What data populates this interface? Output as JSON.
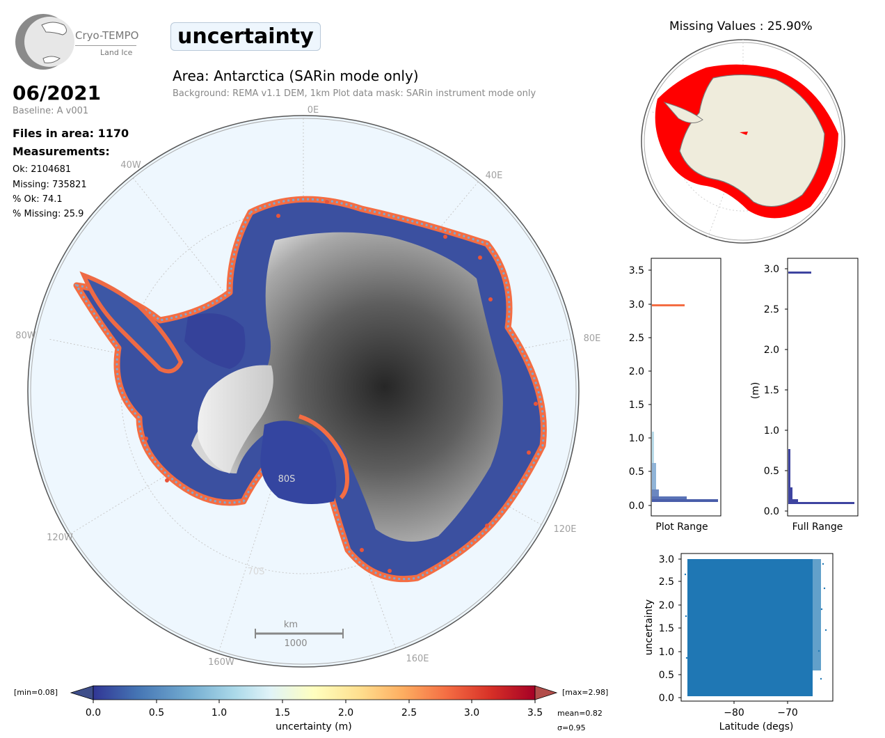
{
  "header": {
    "logo_name": "Cryo-TEMPO",
    "logo_sub": "Land Ice",
    "variable_badge": "uncertainty",
    "period": "06/2021",
    "baseline": "Baseline: A v001",
    "files_in_area": "Files in area: 1170",
    "measurements_title": "Measurements:",
    "stats": [
      "Ok: 2104681",
      "Missing: 735821",
      "% Ok: 74.1",
      "% Missing: 25.9"
    ]
  },
  "main_map": {
    "area_title": "Area: Antarctica (SARin mode only)",
    "subtitle": "Background: REMA v1.1 DEM, 1km   Plot data mask: SARin instrument mode only",
    "lon_labels": {
      "e0": "0E",
      "e40": "40E",
      "e80": "80E",
      "e120": "120E",
      "e160": "160E",
      "w40": "40W",
      "w80": "80W",
      "w120": "120W",
      "w160": "160W"
    },
    "lat_labels": {
      "s80": "80S",
      "s70": "70S"
    },
    "scalebar_unit": "km",
    "scalebar_value": "1000"
  },
  "colorbar": {
    "min_label": "[min=0.08]",
    "max_label": "[max=2.98]",
    "ticks": [
      "0.0",
      "0.5",
      "1.0",
      "1.5",
      "2.0",
      "2.5",
      "3.0",
      "3.5"
    ],
    "label": "uncertainty (m)",
    "mean": "mean=0.82",
    "sigma": "σ=0.95",
    "colors": [
      "#313695",
      "#4575b4",
      "#74add1",
      "#abd9e9",
      "#e0f3f8",
      "#ffffbf",
      "#fee090",
      "#fdae61",
      "#f46d43",
      "#d73027",
      "#a50026"
    ]
  },
  "inset_map": {
    "title": "Missing Values : 25.90%",
    "missing_color": "#ff0000",
    "land_color": "#efecdc"
  },
  "plot_range_hist": {
    "xlabel": "Plot Range",
    "yticks": [
      "0.0",
      "0.5",
      "1.0",
      "1.5",
      "2.0",
      "2.5",
      "3.0",
      "3.5"
    ],
    "ylim": [
      0,
      3.5
    ]
  },
  "full_range_hist": {
    "xlabel": "Full Range",
    "ylabel": "(m)",
    "yticks": [
      "0.0",
      "0.5",
      "1.0",
      "1.5",
      "2.0",
      "2.5",
      "3.0"
    ],
    "ylim": [
      0,
      3.0
    ]
  },
  "chart_data": [
    {
      "type": "bar",
      "orientation": "horizontal",
      "xlabel": "Plot Range",
      "ylim": [
        -0.15,
        3.7
      ],
      "note": "relative counts per uncertainty bin",
      "bins": [
        {
          "y": 0.07,
          "count": 1.0,
          "color": "#4a5eaa"
        },
        {
          "y": 0.12,
          "count": 0.52,
          "color": "#5a73b6"
        },
        {
          "y": 0.18,
          "count": 0.1,
          "color": "#6b87c0"
        },
        {
          "y": 0.3,
          "count": 0.08,
          "color": "#7c9fce"
        },
        {
          "y": 0.5,
          "count": 0.06,
          "color": "#8fb3d7"
        },
        {
          "y": 0.7,
          "count": 0.04,
          "color": "#a3c8e0"
        },
        {
          "y": 1.0,
          "count": 0.02,
          "color": "#b8dbe9"
        },
        {
          "y": 1.3,
          "count": 0.01,
          "color": "#cce8ef"
        },
        {
          "y": 2.97,
          "count": 0.5,
          "color": "#f46d43"
        }
      ]
    },
    {
      "type": "bar",
      "orientation": "horizontal",
      "xlabel": "Full Range",
      "ylabel": "(m)",
      "ylim": [
        -0.05,
        3.15
      ],
      "bins": [
        {
          "y": 0.09,
          "count": 1.0,
          "color": "#3e44a0"
        },
        {
          "y": 0.15,
          "count": 0.16,
          "color": "#3e44a0"
        },
        {
          "y": 0.3,
          "count": 0.06,
          "color": "#3e44a0"
        },
        {
          "y": 0.55,
          "count": 0.03,
          "color": "#3e44a0"
        },
        {
          "y": 0.8,
          "count": 0.02,
          "color": "#3e44a0"
        },
        {
          "y": 2.95,
          "count": 0.33,
          "color": "#3e44a0"
        }
      ]
    },
    {
      "type": "scatter",
      "xlabel": "Latitude (degs)",
      "ylabel": "uncertainty",
      "xlim": [
        -89,
        -62
      ],
      "ylim": [
        -0.05,
        3.05
      ],
      "xticks": [
        "−80",
        "−70"
      ],
      "yticks": [
        "0.0",
        "0.5",
        "1.0",
        "1.5",
        "2.0",
        "2.5",
        "3.0"
      ],
      "color": "#1f77b4",
      "dense_region": {
        "lat_min": -88.2,
        "lat_max": -66.5,
        "unc_min": 0.08,
        "unc_max": 2.98
      }
    }
  ]
}
